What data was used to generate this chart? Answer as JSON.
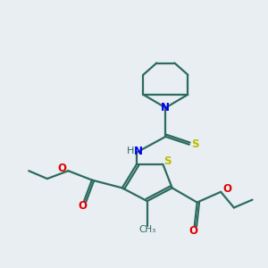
{
  "bg_color": "#e8eef2",
  "bond_color": "#2d6b5e",
  "N_color": "#0000ee",
  "O_color": "#dd0000",
  "S_color": "#bbbb00",
  "line_width": 1.6,
  "figsize": [
    3.0,
    3.0
  ],
  "dpi": 100,
  "xlim": [
    0,
    10
  ],
  "ylim": [
    0,
    10
  ]
}
